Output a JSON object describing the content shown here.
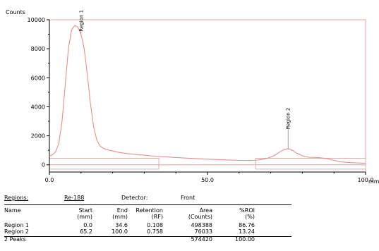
{
  "chart_data": {
    "type": "line",
    "ylabel": "Counts",
    "xlabel": "mm",
    "xlim": [
      0,
      100
    ],
    "ylim": [
      -500,
      10000
    ],
    "x_ticks": [
      {
        "value": 0,
        "label": "0.0"
      },
      {
        "value": 50,
        "label": "50.0"
      },
      {
        "value": 100,
        "label": "100.0"
      }
    ],
    "y_ticks": [
      {
        "value": 0,
        "label": "0"
      },
      {
        "value": 2000,
        "label": "2000"
      },
      {
        "value": 4000,
        "label": "4000"
      },
      {
        "value": 6000,
        "label": "6000"
      },
      {
        "value": 8000,
        "label": "8000"
      },
      {
        "value": 10000,
        "label": "10000"
      }
    ],
    "series": [
      {
        "x": [
          0,
          1,
          2,
          3,
          4,
          5,
          6,
          7,
          8,
          9,
          10,
          11,
          12,
          13,
          14,
          15,
          16,
          17,
          18,
          20,
          22,
          25,
          28,
          30,
          32,
          35,
          38,
          40,
          45,
          50,
          55,
          60,
          63,
          65,
          67,
          69,
          71,
          72,
          73,
          74,
          75,
          76,
          77,
          78,
          80,
          82,
          85,
          88,
          90,
          92,
          95,
          98,
          100
        ],
        "y": [
          600,
          700,
          900,
          1500,
          3000,
          5500,
          8000,
          9300,
          9600,
          9500,
          9000,
          8000,
          6200,
          4200,
          2600,
          1700,
          1300,
          1150,
          1050,
          950,
          850,
          760,
          700,
          660,
          620,
          570,
          530,
          500,
          440,
          390,
          340,
          300,
          290,
          300,
          360,
          460,
          620,
          760,
          900,
          1020,
          1100,
          1080,
          980,
          820,
          620,
          520,
          500,
          420,
          300,
          200,
          150,
          120,
          100
        ]
      }
    ],
    "annotations": [
      {
        "label": "Region 1",
        "x": 10
      },
      {
        "label": "Region 2",
        "x": 75.5
      }
    ]
  },
  "info": {
    "regions_label": "Regions:",
    "isotope": "Re-188",
    "detector_label": "Detector:",
    "detector_value": "Front"
  },
  "table": {
    "headers": [
      {
        "line1": "Name",
        "line2": ""
      },
      {
        "line1": "Start",
        "line2": "(mm)"
      },
      {
        "line1": "End",
        "line2": "(mm)"
      },
      {
        "line1": "Retention",
        "line2": "(RF)"
      },
      {
        "line1": "Area",
        "line2": "(Counts)"
      },
      {
        "line1": "%ROI",
        "line2": "(%)"
      }
    ],
    "rows": [
      {
        "name": "Region 1",
        "start": "0.0",
        "end": "34.6",
        "rf": "0.108",
        "area": "498388",
        "roi": "86.76"
      },
      {
        "name": "Region 2",
        "start": "65.2",
        "end": "100.0",
        "rf": "0.758",
        "area": "76033",
        "roi": "13.24"
      }
    ],
    "total": {
      "name": "2 Peaks",
      "area": "574420",
      "roi": "100.00"
    }
  }
}
